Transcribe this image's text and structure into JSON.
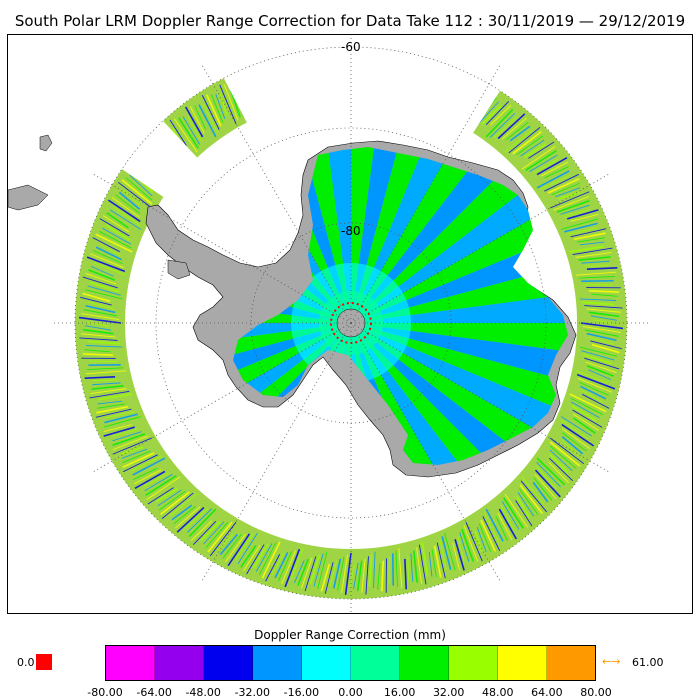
{
  "title": "South Polar LRM Doppler Range Correction for Data Take 112 : 30/11/2019 — 29/12/2019",
  "map": {
    "lat_labels": [
      "-60",
      "-80"
    ],
    "colors": {
      "land": "#a9a9a9",
      "graticule": "#555555",
      "ocean_ring_base": "#9ad33a",
      "ice_base": "#00aaff"
    }
  },
  "legend": {
    "title": "Doppler Range Correction (mm)",
    "ticks": [
      "-80.00",
      "-64.00",
      "-48.00",
      "-32.00",
      "-16.00",
      "0.00",
      "16.00",
      "32.00",
      "48.00",
      "64.00",
      "80.00"
    ],
    "colors": [
      "#ff00ff",
      "#9400ee",
      "#0000ee",
      "#0096ff",
      "#00ffff",
      "#00ff99",
      "#00ee00",
      "#99ff00",
      "#ffff00",
      "#ff9900"
    ],
    "below_value": "0.0",
    "below_color": "#ff0000",
    "above_arrow": "←→",
    "above_value": "61.00",
    "above_color": "#ff9900"
  }
}
